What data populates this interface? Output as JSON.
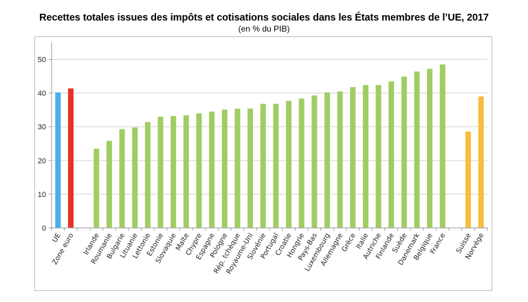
{
  "chart_data": {
    "type": "bar",
    "title": "Recettes totales issues des impôts et cotisations sociales dans les États membres de l’UE, 2017",
    "subtitle": "(en % du PIB)",
    "xlabel": "",
    "ylabel": "",
    "ylim": [
      0,
      55
    ],
    "yticks": [
      0,
      10,
      20,
      30,
      40,
      50
    ],
    "grid": true,
    "legend": "none",
    "colors": {
      "aggregate_eu": "#4aaee8",
      "aggregate_euro": "#e83227",
      "member": "#a0cd63",
      "efta": "#f6bd3e"
    },
    "categories": [
      "UE",
      "Zone euro",
      "",
      "Irlande",
      "Roumanie",
      "Bulgarie",
      "Lituanie",
      "Lettonie",
      "Estonie",
      "Slovaquie",
      "Malte",
      "Chypre",
      "Espagne",
      "Pologne",
      "Rép. tchèque",
      "Royaume-Uni",
      "Slovénie",
      "Portugal",
      "Croatie",
      "Hongrie",
      "Pays-Bas",
      "Luxembourg",
      "Allemagne",
      "Grèce",
      "Italie",
      "Autriche",
      "Finlande",
      "Suède",
      "Danemark",
      "Belgique",
      "France",
      "",
      "Suisse",
      "Norvège"
    ],
    "values": [
      40.2,
      41.4,
      null,
      23.5,
      25.8,
      29.3,
      29.8,
      31.4,
      33.0,
      33.2,
      33.4,
      34.0,
      34.5,
      35.1,
      35.4,
      35.4,
      36.8,
      36.8,
      37.7,
      38.4,
      39.3,
      40.2,
      40.5,
      41.8,
      42.4,
      42.4,
      43.5,
      44.9,
      46.4,
      47.2,
      48.5,
      null,
      28.6,
      39.0
    ],
    "groups": [
      "aggregate_eu",
      "aggregate_euro",
      null,
      "member",
      "member",
      "member",
      "member",
      "member",
      "member",
      "member",
      "member",
      "member",
      "member",
      "member",
      "member",
      "member",
      "member",
      "member",
      "member",
      "member",
      "member",
      "member",
      "member",
      "member",
      "member",
      "member",
      "member",
      "member",
      "member",
      "member",
      "member",
      null,
      "efta",
      "efta"
    ]
  }
}
